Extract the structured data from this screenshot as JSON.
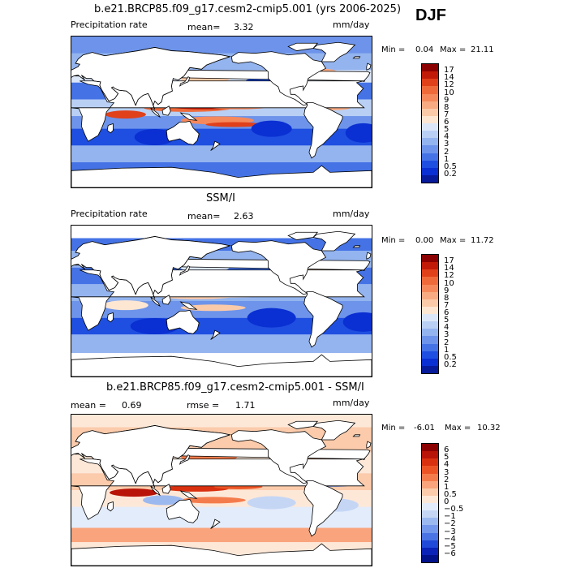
{
  "season": "DJF",
  "panels": [
    {
      "title": "b.e21.BRCP85.f09_g17.cesm2-cmip5.001 (yrs 2006-2025)",
      "left": "Precipitation rate",
      "mid_label": "mean=",
      "mid_value": "3.32",
      "right_label": "",
      "right_value": "",
      "units": "mm/day",
      "min_label": "Min =",
      "min_value": "0.04",
      "max_label": "Max =",
      "max_value": "21.11",
      "levels": [
        "17",
        "14",
        "12",
        "10",
        "9",
        "8",
        "7",
        "6",
        "5",
        "4",
        "3",
        "2",
        "1",
        "0.5",
        "0.2"
      ],
      "colors": [
        "#8b0000",
        "#c21a08",
        "#e0401a",
        "#ef6a3a",
        "#f5895c",
        "#f8aa82",
        "#fbcaa8",
        "#fde6d2",
        "#dbe7f8",
        "#b9d0f4",
        "#94b4ef",
        "#6d94ea",
        "#4573e6",
        "#1f4fe0",
        "#0a2fd2",
        "#061a9a"
      ],
      "style": "model"
    },
    {
      "title": "SSM/I",
      "left": "Precipitation rate",
      "mid_label": "mean=",
      "mid_value": "2.63",
      "right_label": "",
      "right_value": "",
      "units": "mm/day",
      "min_label": "Min =",
      "min_value": "0.00",
      "max_label": "Max =",
      "max_value": "11.72",
      "levels": [
        "17",
        "14",
        "12",
        "10",
        "9",
        "8",
        "7",
        "6",
        "5",
        "4",
        "3",
        "2",
        "1",
        "0.5",
        "0.2"
      ],
      "colors": [
        "#8b0000",
        "#c21a08",
        "#e0401a",
        "#ef6a3a",
        "#f5895c",
        "#f8aa82",
        "#fbcaa8",
        "#fde6d2",
        "#dbe7f8",
        "#b9d0f4",
        "#94b4ef",
        "#6d94ea",
        "#4573e6",
        "#1f4fe0",
        "#0a2fd2",
        "#061a9a"
      ],
      "style": "obs"
    },
    {
      "title": "b.e21.BRCP85.f09_g17.cesm2-cmip5.001 - SSM/I",
      "left": "mean =",
      "left_value": "0.69",
      "mid_label": "rmse =",
      "mid_value": "1.71",
      "units": "mm/day",
      "min_label": "Min =",
      "min_value": "-6.01",
      "max_label": "Max =",
      "max_value": "10.32",
      "levels": [
        "6",
        "5",
        "4",
        "3",
        "2",
        "1",
        "0.5",
        "0",
        "−0.5",
        "−1",
        "−2",
        "−3",
        "−4",
        "−5",
        "−6"
      ],
      "colors": [
        "#8b0000",
        "#b81407",
        "#d9300f",
        "#ec5425",
        "#f47c4c",
        "#f9a47c",
        "#fbcbab",
        "#fde8d8",
        "#e3ecfa",
        "#c5d6f5",
        "#9cb9ef",
        "#7397ea",
        "#4a73e4",
        "#2149d9",
        "#0a22b8",
        "#00118a"
      ],
      "style": "diff"
    }
  ]
}
